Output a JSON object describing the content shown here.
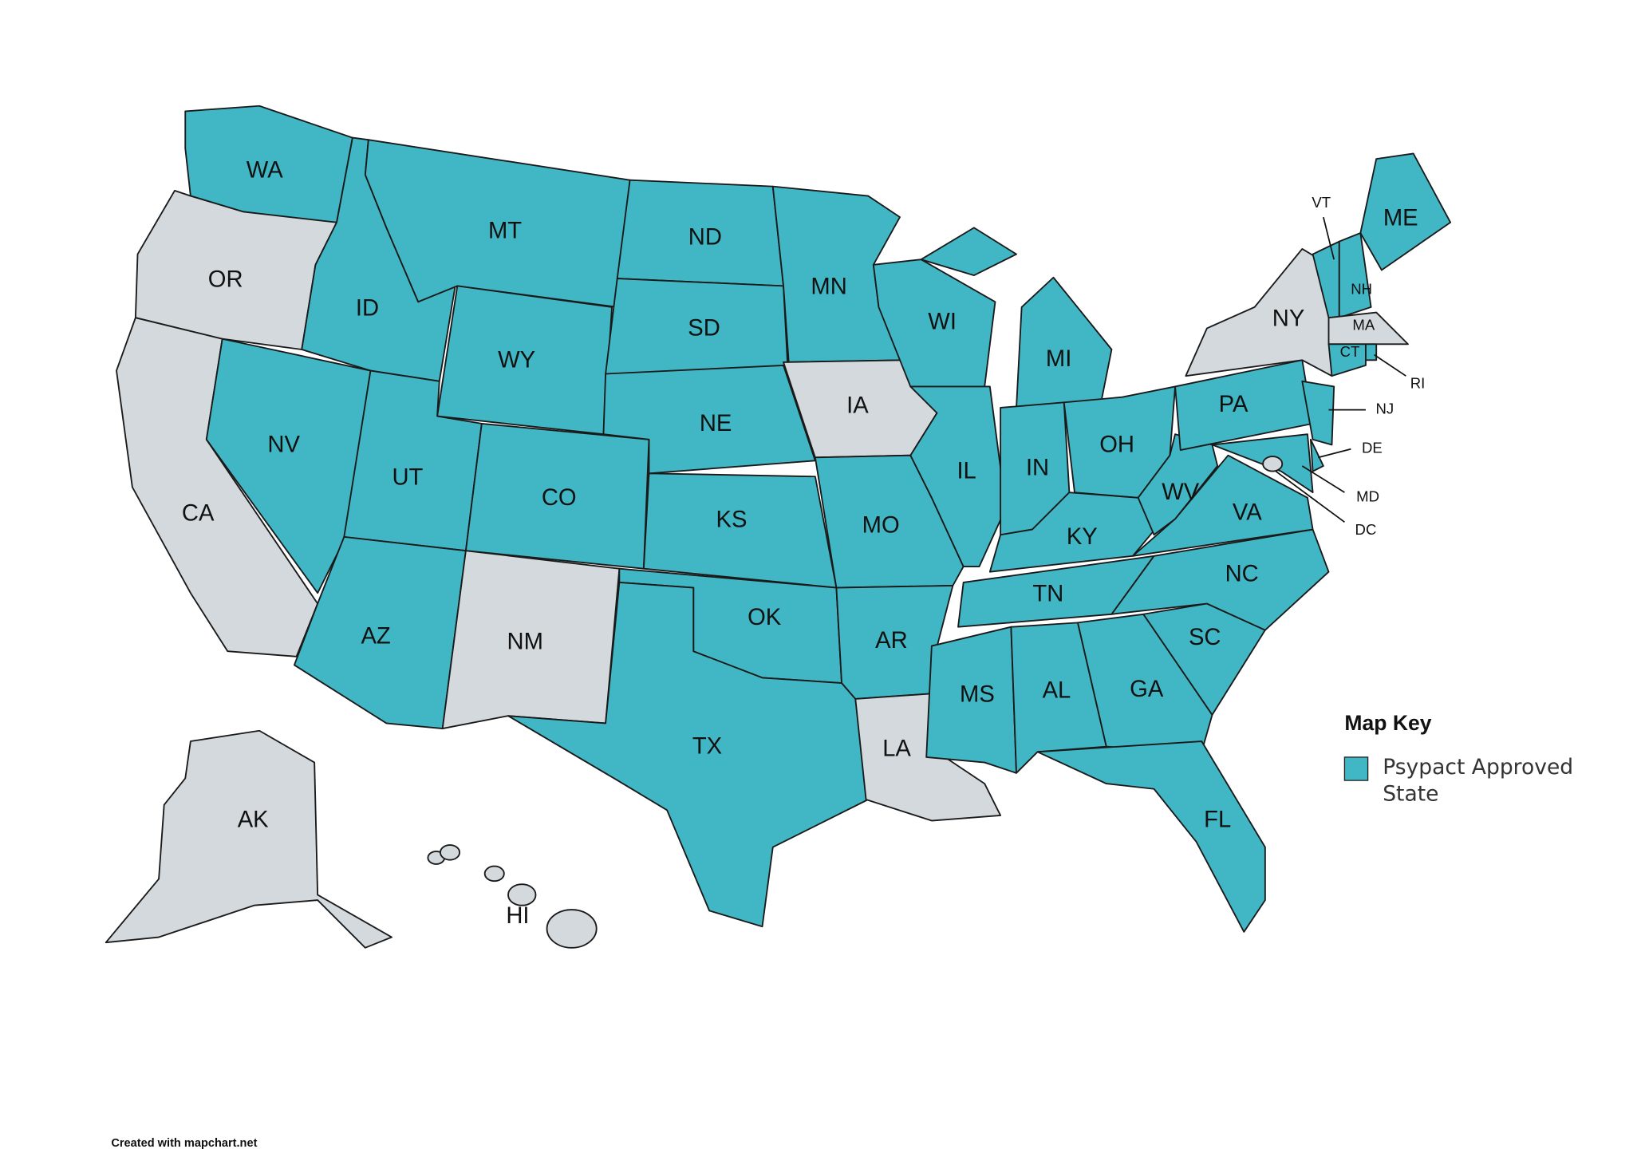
{
  "map": {
    "approved_color": "#41b6c4",
    "other_color": "#d3d9dc",
    "states": [
      {
        "label": "WA",
        "approved": true
      },
      {
        "label": "OR",
        "approved": false
      },
      {
        "label": "CA",
        "approved": false
      },
      {
        "label": "ID",
        "approved": true
      },
      {
        "label": "NV",
        "approved": true
      },
      {
        "label": "MT",
        "approved": true
      },
      {
        "label": "WY",
        "approved": true
      },
      {
        "label": "UT",
        "approved": true
      },
      {
        "label": "AZ",
        "approved": true
      },
      {
        "label": "CO",
        "approved": true
      },
      {
        "label": "NM",
        "approved": false
      },
      {
        "label": "ND",
        "approved": true
      },
      {
        "label": "SD",
        "approved": true
      },
      {
        "label": "NE",
        "approved": true
      },
      {
        "label": "KS",
        "approved": true
      },
      {
        "label": "OK",
        "approved": true
      },
      {
        "label": "TX",
        "approved": true
      },
      {
        "label": "MN",
        "approved": true
      },
      {
        "label": "IA",
        "approved": false
      },
      {
        "label": "MO",
        "approved": true
      },
      {
        "label": "AR",
        "approved": true
      },
      {
        "label": "LA",
        "approved": false
      },
      {
        "label": "WI",
        "approved": true
      },
      {
        "label": "IL",
        "approved": true
      },
      {
        "label": "MI",
        "approved": true
      },
      {
        "label": "IN",
        "approved": true
      },
      {
        "label": "OH",
        "approved": true
      },
      {
        "label": "KY",
        "approved": true
      },
      {
        "label": "TN",
        "approved": true
      },
      {
        "label": "MS",
        "approved": true
      },
      {
        "label": "AL",
        "approved": true
      },
      {
        "label": "GA",
        "approved": true
      },
      {
        "label": "FL",
        "approved": true
      },
      {
        "label": "SC",
        "approved": true
      },
      {
        "label": "NC",
        "approved": true
      },
      {
        "label": "VA",
        "approved": true
      },
      {
        "label": "WV",
        "approved": true
      },
      {
        "label": "PA",
        "approved": true
      },
      {
        "label": "NY",
        "approved": false
      },
      {
        "label": "NJ",
        "approved": true
      },
      {
        "label": "DE",
        "approved": true
      },
      {
        "label": "MD",
        "approved": true
      },
      {
        "label": "DC",
        "approved": false
      },
      {
        "label": "VT",
        "approved": true
      },
      {
        "label": "NH",
        "approved": true
      },
      {
        "label": "ME",
        "approved": true
      },
      {
        "label": "MA",
        "approved": false
      },
      {
        "label": "CT",
        "approved": true
      },
      {
        "label": "RI",
        "approved": true
      },
      {
        "label": "AK",
        "approved": false
      },
      {
        "label": "HI",
        "approved": false
      }
    ]
  },
  "legend": {
    "title": "Map Key",
    "label": "Psypact Approved State"
  },
  "credit": "Created with mapchart.net"
}
